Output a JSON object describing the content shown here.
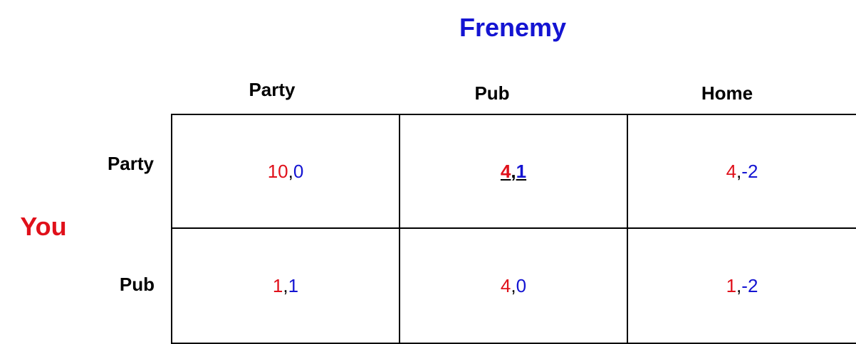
{
  "colors": {
    "you": "#e0101a",
    "frenemy": "#1414d2",
    "text": "#000000",
    "grid": "#000000"
  },
  "players": {
    "column": "Frenemy",
    "row": "You"
  },
  "columns": [
    "Party",
    "Pub",
    "Home"
  ],
  "rows": [
    "Party",
    "Pub"
  ],
  "payoffs": [
    [
      {
        "you": "10",
        "sep": ", ",
        "frenemy": "0",
        "highlight": false
      },
      {
        "you": "4",
        "sep": ", ",
        "frenemy": "1",
        "highlight": true
      },
      {
        "you": "4",
        "sep": ", ",
        "frenemy": "-2",
        "highlight": false
      }
    ],
    [
      {
        "you": "1",
        "sep": ", ",
        "frenemy": "1",
        "highlight": false
      },
      {
        "you": "4",
        "sep": ", ",
        "frenemy": "0",
        "highlight": false
      },
      {
        "you": "1",
        "sep": ", ",
        "frenemy": "-2",
        "highlight": false
      }
    ]
  ]
}
